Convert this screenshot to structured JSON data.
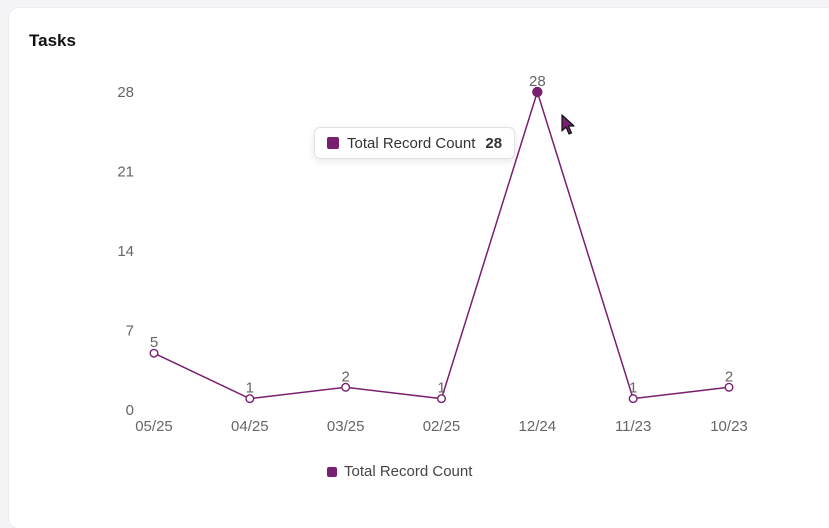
{
  "card": {
    "title": "Tasks"
  },
  "tooltip": {
    "label": "Total Record Count",
    "value": "28"
  },
  "legend": {
    "label": "Total Record Count"
  },
  "colors": {
    "series": "#7a1f6f",
    "text": "#666666"
  },
  "chart_data": {
    "type": "line",
    "title": "Tasks",
    "xlabel": "",
    "ylabel": "",
    "categories": [
      "05/25",
      "04/25",
      "03/25",
      "02/25",
      "12/24",
      "11/23",
      "10/23"
    ],
    "series": [
      {
        "name": "Total Record Count",
        "values": [
          5,
          1,
          2,
          1,
          28,
          1,
          2
        ]
      }
    ],
    "y_ticks": [
      0,
      7,
      14,
      21,
      28
    ],
    "ylim": [
      0,
      28
    ],
    "highlighted_index": 4,
    "legend_position": "bottom",
    "grid": false
  }
}
